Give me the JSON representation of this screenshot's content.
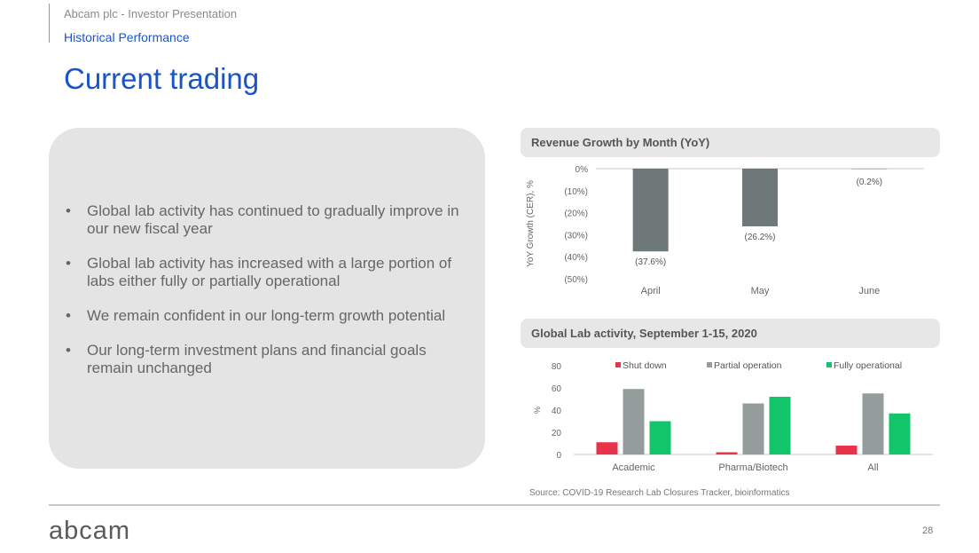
{
  "header": {
    "company": "Abcam plc - Investor Presentation",
    "section": "Historical Performance",
    "title": "Current trading"
  },
  "bullets": [
    "Global lab activity has continued to gradually improve in our new fiscal year",
    "Global lab activity has increased with a large portion of labs either fully or partially operational",
    "We remain confident in our long-term growth potential",
    "Our long-term investment plans and financial goals remain unchanged"
  ],
  "chart_data": [
    {
      "type": "bar",
      "title": "Revenue Growth  by Month (YoY)",
      "ylabel": "YoY Growth (CER), %",
      "categories": [
        "April",
        "May",
        "June"
      ],
      "values": [
        -37.6,
        -26.2,
        -0.2
      ],
      "value_labels": [
        "(37.6%)",
        "(26.2%)",
        "(0.2%)"
      ],
      "yticks": [
        0,
        -10,
        -20,
        -30,
        -40,
        -50
      ],
      "ytick_labels": [
        "0%",
        "(10%)",
        "(20%)",
        "(30%)",
        "(40%)",
        "(50%)"
      ],
      "ylim": [
        -50,
        0
      ],
      "grid": false,
      "color": "#6f7878"
    },
    {
      "type": "bar",
      "title": "Global Lab activity, September 1-15, 2020",
      "ylabel": "%",
      "categories": [
        "Academic",
        "Pharma/Biotech",
        "All"
      ],
      "series": [
        {
          "name": "Shut down",
          "values": [
            11,
            2,
            8
          ],
          "color": "#e8334a"
        },
        {
          "name": "Partial operation",
          "values": [
            59,
            46,
            55
          ],
          "color": "#949c9c"
        },
        {
          "name": "Fully operational",
          "values": [
            30,
            52,
            37
          ],
          "color": "#12c46a"
        }
      ],
      "yticks": [
        0,
        20,
        40,
        60,
        80
      ],
      "ylim": [
        0,
        80
      ],
      "legend": "top",
      "grid": false
    }
  ],
  "source": "Source: COVID-19 Research Lab Closures Tracker, bioinformatics",
  "footer": {
    "logo": "abcam",
    "page": "28"
  }
}
